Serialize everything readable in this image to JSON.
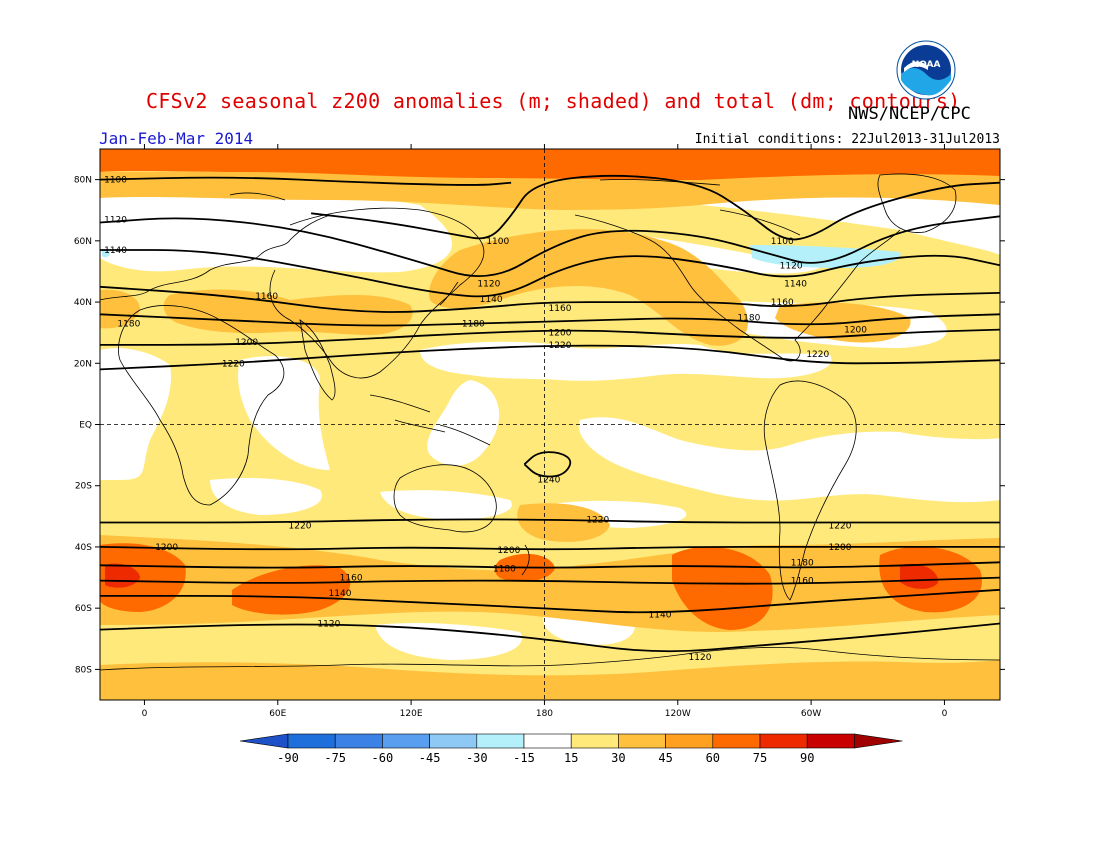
{
  "title": "CFSv2 seasonal z200 anomalies (m; shaded) and total (dm; contours)",
  "agency": "NWS/NCEP/CPC",
  "season": "Jan-Feb-Mar 2014",
  "initial_conditions": "Initial conditions: 22Jul2013-31Jul2013",
  "logo_text": "NOAA",
  "map": {
    "lat_labels": [
      {
        "text": "80N",
        "lat": 80
      },
      {
        "text": "60N",
        "lat": 60
      },
      {
        "text": "40N",
        "lat": 40
      },
      {
        "text": "20N",
        "lat": 20
      },
      {
        "text": "EQ",
        "lat": 0
      },
      {
        "text": "20S",
        "lat": -20
      },
      {
        "text": "40S",
        "lat": -40
      },
      {
        "text": "60S",
        "lat": -60
      },
      {
        "text": "80S",
        "lat": -80
      }
    ],
    "lon_labels": [
      {
        "text": "0",
        "lon": 0
      },
      {
        "text": "60E",
        "lon": 60
      },
      {
        "text": "120E",
        "lon": 120
      },
      {
        "text": "180",
        "lon": 180
      },
      {
        "text": "120W",
        "lon": 240
      },
      {
        "text": "60W",
        "lon": 300
      },
      {
        "text": "0",
        "lon": 360
      }
    ],
    "lon_range": [
      -20,
      385
    ],
    "lat_range": [
      -90,
      90
    ],
    "colors": {
      "white": "#ffffff",
      "c15_30": "#ffe97a",
      "c30_45": "#ffc03d",
      "c45_60": "#ff6a00",
      "c60_75": "#ee2a00",
      "neg15_30": "#b4f0fa",
      "contour": "#000000",
      "coast": "#000000"
    },
    "contours": [
      {
        "label": "1100",
        "points": [
          [
            -20,
            80
          ],
          [
            40,
            81
          ],
          [
            100,
            79
          ],
          [
            150,
            78
          ],
          [
            165,
            79
          ]
        ]
      },
      {
        "label": "1100",
        "points": [
          [
            75,
            69
          ],
          [
            110,
            66
          ],
          [
            140,
            62
          ],
          [
            155,
            60
          ],
          [
            165,
            68
          ],
          [
            175,
            79
          ],
          [
            210,
            82
          ],
          [
            250,
            79
          ],
          [
            270,
            70
          ],
          [
            287,
            60
          ],
          [
            300,
            61
          ],
          [
            320,
            70
          ],
          [
            360,
            78
          ],
          [
            385,
            79
          ]
        ]
      },
      {
        "label": "1120",
        "points": [
          [
            -20,
            66
          ],
          [
            20,
            68
          ],
          [
            70,
            64
          ],
          [
            120,
            54
          ],
          [
            155,
            46
          ],
          [
            185,
            59
          ],
          [
            210,
            64
          ],
          [
            250,
            62
          ],
          [
            280,
            56
          ],
          [
            305,
            51
          ],
          [
            340,
            64
          ],
          [
            385,
            68
          ]
        ]
      },
      {
        "label": "1140",
        "points": [
          [
            -20,
            57
          ],
          [
            30,
            57
          ],
          [
            90,
            49
          ],
          [
            130,
            43
          ],
          [
            160,
            41
          ],
          [
            190,
            52
          ],
          [
            220,
            56
          ],
          [
            260,
            52
          ],
          [
            290,
            47
          ],
          [
            320,
            53
          ],
          [
            360,
            56
          ],
          [
            385,
            52
          ]
        ]
      },
      {
        "label": "1160",
        "points": [
          [
            -20,
            45
          ],
          [
            40,
            42
          ],
          [
            100,
            36
          ],
          [
            150,
            38
          ],
          [
            180,
            40
          ],
          [
            220,
            40
          ],
          [
            260,
            40
          ],
          [
            290,
            38
          ],
          [
            330,
            42
          ],
          [
            385,
            43
          ]
        ]
      },
      {
        "label": "1180",
        "points": [
          [
            -20,
            36
          ],
          [
            40,
            34
          ],
          [
            100,
            32
          ],
          [
            150,
            33
          ],
          [
            200,
            34
          ],
          [
            250,
            35
          ],
          [
            300,
            32
          ],
          [
            340,
            35
          ],
          [
            385,
            36
          ]
        ]
      },
      {
        "label": "1200",
        "points": [
          [
            -20,
            26
          ],
          [
            40,
            26
          ],
          [
            100,
            28
          ],
          [
            150,
            30
          ],
          [
            200,
            31
          ],
          [
            250,
            29
          ],
          [
            300,
            28
          ],
          [
            340,
            30
          ],
          [
            385,
            31
          ]
        ]
      },
      {
        "label": "1220",
        "points": [
          [
            -20,
            18
          ],
          [
            40,
            20
          ],
          [
            100,
            23
          ],
          [
            150,
            25
          ],
          [
            200,
            26
          ],
          [
            250,
            25
          ],
          [
            300,
            20
          ],
          [
            340,
            20
          ],
          [
            385,
            21
          ]
        ]
      },
      {
        "label": "1240",
        "points": [
          [
            171,
            -13
          ],
          [
            177,
            -9
          ],
          [
            187,
            -9
          ],
          [
            193,
            -12
          ],
          [
            188,
            -17
          ],
          [
            177,
            -17
          ],
          [
            171,
            -13
          ]
        ]
      },
      {
        "label": "1220",
        "points": [
          [
            -20,
            -32
          ],
          [
            60,
            -32
          ],
          [
            120,
            -31
          ],
          [
            180,
            -31
          ],
          [
            240,
            -32
          ],
          [
            300,
            -32
          ],
          [
            385,
            -32
          ]
        ]
      },
      {
        "label": "1200",
        "points": [
          [
            -20,
            -40
          ],
          [
            60,
            -41
          ],
          [
            120,
            -40
          ],
          [
            180,
            -41
          ],
          [
            240,
            -40
          ],
          [
            300,
            -40
          ],
          [
            385,
            -40
          ]
        ]
      },
      {
        "label": "1180",
        "points": [
          [
            -20,
            -46
          ],
          [
            60,
            -47
          ],
          [
            120,
            -46
          ],
          [
            180,
            -47
          ],
          [
            240,
            -46
          ],
          [
            300,
            -47
          ],
          [
            385,
            -45
          ]
        ]
      },
      {
        "label": "1160",
        "points": [
          [
            -20,
            -51
          ],
          [
            60,
            -52
          ],
          [
            120,
            -51
          ],
          [
            180,
            -51
          ],
          [
            240,
            -52
          ],
          [
            300,
            -52
          ],
          [
            385,
            -50
          ]
        ]
      },
      {
        "label": "1140",
        "points": [
          [
            -20,
            -56
          ],
          [
            60,
            -56
          ],
          [
            120,
            -58
          ],
          [
            180,
            -60
          ],
          [
            230,
            -62
          ],
          [
            300,
            -58
          ],
          [
            385,
            -54
          ]
        ]
      },
      {
        "label": "1120",
        "points": [
          [
            -20,
            -67
          ],
          [
            60,
            -65
          ],
          [
            120,
            -66
          ],
          [
            180,
            -70
          ],
          [
            230,
            -75
          ],
          [
            280,
            -72
          ],
          [
            330,
            -69
          ],
          [
            385,
            -65
          ]
        ]
      }
    ],
    "contour_labels": [
      {
        "text": "1100",
        "lon": -13,
        "lat": 80
      },
      {
        "text": "1100",
        "lon": 159,
        "lat": 60
      },
      {
        "text": "1100",
        "lon": 287,
        "lat": 60
      },
      {
        "text": "1120",
        "lon": -13,
        "lat": 67
      },
      {
        "text": "1120",
        "lon": 155,
        "lat": 46
      },
      {
        "text": "1120",
        "lon": 291,
        "lat": 52
      },
      {
        "text": "1140",
        "lon": -13,
        "lat": 57
      },
      {
        "text": "1140",
        "lon": 156,
        "lat": 41
      },
      {
        "text": "1140",
        "lon": 293,
        "lat": 46
      },
      {
        "text": "1160",
        "lon": 55,
        "lat": 42
      },
      {
        "text": "1160",
        "lon": 187,
        "lat": 38
      },
      {
        "text": "1160",
        "lon": 287,
        "lat": 40
      },
      {
        "text": "1180",
        "lon": -7,
        "lat": 33
      },
      {
        "text": "1180",
        "lon": 148,
        "lat": 33
      },
      {
        "text": "1180",
        "lon": 272,
        "lat": 35
      },
      {
        "text": "1200",
        "lon": 46,
        "lat": 27
      },
      {
        "text": "1200",
        "lon": 187,
        "lat": 30
      },
      {
        "text": "1200",
        "lon": 320,
        "lat": 31
      },
      {
        "text": "1220",
        "lon": 40,
        "lat": 20
      },
      {
        "text": "1220",
        "lon": 187,
        "lat": 26
      },
      {
        "text": "1220",
        "lon": 303,
        "lat": 23
      },
      {
        "text": "1240",
        "lon": 182,
        "lat": -18
      },
      {
        "text": "1220",
        "lon": 70,
        "lat": -33
      },
      {
        "text": "1220",
        "lon": 204,
        "lat": -31
      },
      {
        "text": "1220",
        "lon": 313,
        "lat": -33
      },
      {
        "text": "1200",
        "lon": 10,
        "lat": -40
      },
      {
        "text": "1200",
        "lon": 164,
        "lat": -41
      },
      {
        "text": "1200",
        "lon": 313,
        "lat": -40
      },
      {
        "text": "1180",
        "lon": 162,
        "lat": -47
      },
      {
        "text": "1180",
        "lon": 296,
        "lat": -45
      },
      {
        "text": "1160",
        "lon": 93,
        "lat": -50
      },
      {
        "text": "1160",
        "lon": 296,
        "lat": -51
      },
      {
        "text": "1140",
        "lon": 88,
        "lat": -55
      },
      {
        "text": "1140",
        "lon": 232,
        "lat": -62
      },
      {
        "text": "1120",
        "lon": 83,
        "lat": -65
      },
      {
        "text": "1120",
        "lon": 250,
        "lat": -76
      }
    ]
  },
  "colorbar": {
    "labels": [
      "-90",
      "-75",
      "-60",
      "-45",
      "-30",
      "-15",
      "15",
      "30",
      "45",
      "60",
      "75",
      "90"
    ],
    "colors": [
      "#1e6edc",
      "#3c82e6",
      "#5a9ef0",
      "#8ec8f5",
      "#b4f0fa",
      "#ffffff",
      "#ffe97a",
      "#ffc03d",
      "#ffa020",
      "#ff6a00",
      "#ee2a00",
      "#c80000"
    ],
    "left_arrow_color": "#1e50c8",
    "right_arrow_color": "#a00000"
  }
}
